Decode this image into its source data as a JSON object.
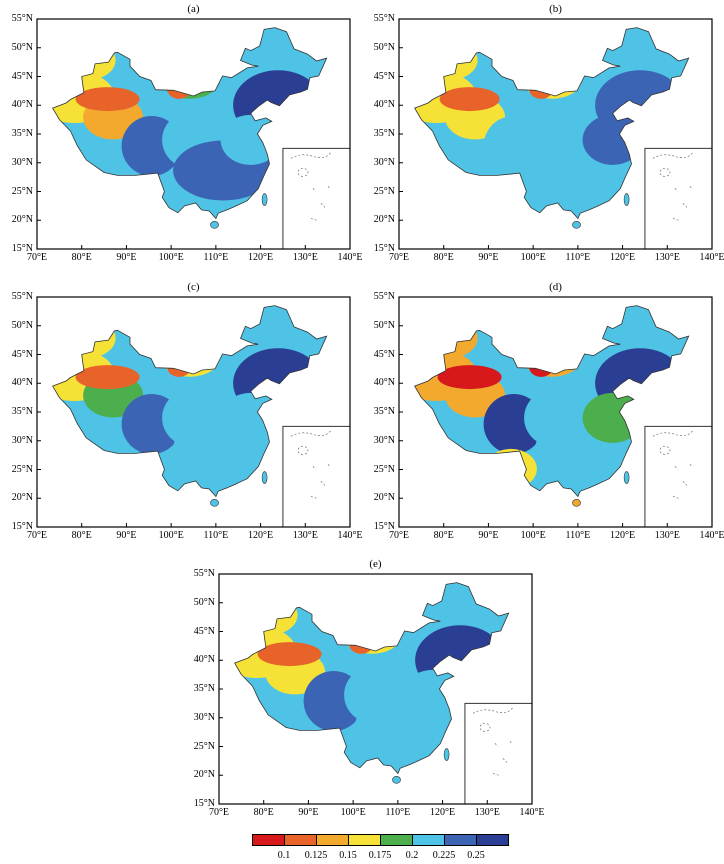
{
  "panels": [
    {
      "label": "(a)"
    },
    {
      "label": "(b)"
    },
    {
      "label": "(c)"
    },
    {
      "label": "(d)"
    },
    {
      "label": "(e)"
    }
  ],
  "y_ticks": [
    "55°N",
    "50°N",
    "45°N",
    "40°N",
    "35°N",
    "30°N",
    "25°N",
    "20°N",
    "15°N"
  ],
  "x_ticks": [
    "70°E",
    "80°E",
    "90°E",
    "100°E",
    "110°E",
    "120°E",
    "130°E",
    "140°E"
  ],
  "legend": {
    "labels": [
      "0.1",
      "0.125",
      "0.15",
      "0.175",
      "0.2",
      "0.225",
      "0.25"
    ],
    "colors": [
      "#d7191c",
      "#e8632a",
      "#f2a92e",
      "#f6e236",
      "#4cae4c",
      "#4fc3e6",
      "#3b64b4",
      "#2a3f94"
    ]
  },
  "chart_data": {
    "type": "map",
    "extent": {
      "lon": [
        70,
        140
      ],
      "lat": [
        15,
        55
      ]
    },
    "color_scale_breaks": [
      0.1,
      0.125,
      0.15,
      0.175,
      0.2,
      0.225,
      0.25
    ],
    "panels": [
      "(a)",
      "(b)",
      "(c)",
      "(d)",
      "(e)"
    ]
  }
}
